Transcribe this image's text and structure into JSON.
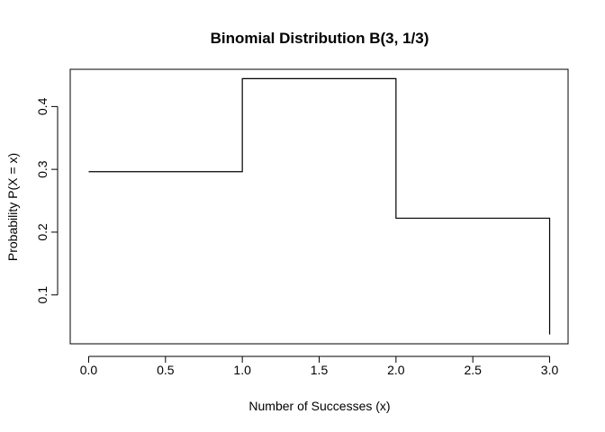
{
  "chart_data": {
    "type": "line",
    "style": "step",
    "title": "Binomial Distribution B(3, 1/3)",
    "xlabel": "Number of Successes (x)",
    "ylabel": "Probability P(X = x)",
    "x": [
      0,
      1,
      2,
      3
    ],
    "y": [
      0.2963,
      0.4444,
      0.2222,
      0.037
    ],
    "xlim": [
      -0.12,
      3.12
    ],
    "ylim": [
      0.0222,
      0.4593
    ],
    "xticks": [
      0.0,
      0.5,
      1.0,
      1.5,
      2.0,
      2.5,
      3.0
    ],
    "xtick_labels": [
      "0.0",
      "0.5",
      "1.0",
      "1.5",
      "2.0",
      "2.5",
      "3.0"
    ],
    "yticks": [
      0.1,
      0.2,
      0.3,
      0.4
    ],
    "ytick_labels": [
      "0.1",
      "0.2",
      "0.3",
      "0.4"
    ],
    "grid": false,
    "legend": "none",
    "line_color": "#000000"
  }
}
